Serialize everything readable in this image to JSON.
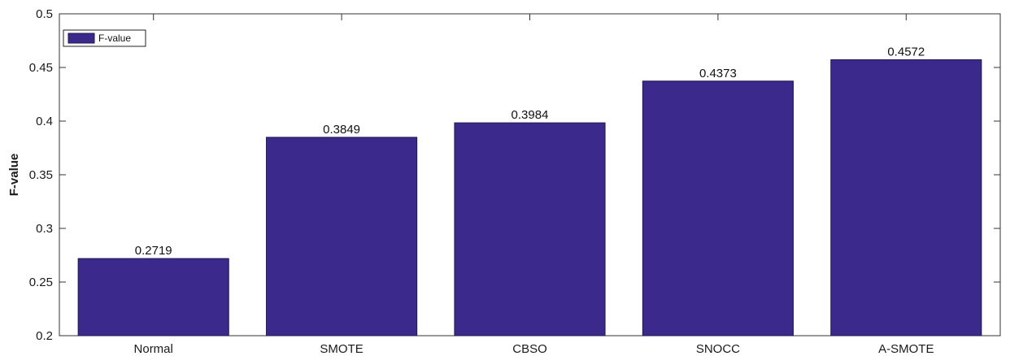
{
  "chart_data": {
    "type": "bar",
    "categories": [
      "Normal",
      "SMOTE",
      "CBSO",
      "SNOCC",
      "A-SMOTE"
    ],
    "series": [
      {
        "name": "F-value",
        "values": [
          0.2719,
          0.3849,
          0.3984,
          0.4373,
          0.4572
        ]
      }
    ],
    "data_labels": [
      "0.2719",
      "0.3849",
      "0.3984",
      "0.4373",
      "0.4572"
    ],
    "ylabel": "F-value",
    "xlabel": "",
    "ylim": [
      0.2,
      0.5
    ],
    "yticks": [
      0.2,
      0.25,
      0.3,
      0.35,
      0.4,
      0.45,
      0.5
    ],
    "ytick_labels": [
      "0.2",
      "0.25",
      "0.3",
      "0.35",
      "0.4",
      "0.45",
      "0.5"
    ],
    "grid": false,
    "legend": {
      "entries": [
        "F-value"
      ],
      "placement": "top-left"
    },
    "colors": {
      "bar": "#3b298c",
      "bar_edge": "#1f1a4a",
      "axis": "#333333"
    }
  }
}
